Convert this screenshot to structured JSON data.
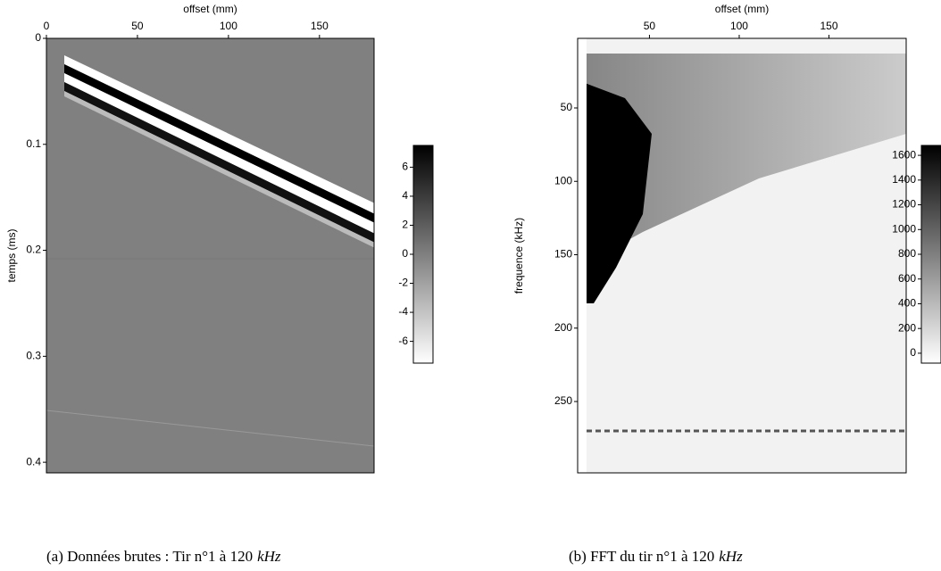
{
  "chart_data": [
    {
      "type": "image",
      "x_label": "offset (mm)",
      "y_label": "temps (ms)",
      "xlim": [
        0,
        180
      ],
      "xticks": [
        0,
        50,
        100,
        150
      ],
      "ylim": [
        0,
        0.41
      ],
      "yticks": [
        0,
        0.1,
        0.2,
        0.3,
        0.4
      ],
      "colorbar": {
        "lim": [
          -7.5,
          7.5
        ],
        "ticks": [
          6,
          4,
          2,
          0,
          -2,
          -4,
          -6
        ]
      },
      "caption": "(a) Données brutes : Tir n°1 à 120",
      "caption_unit": "kHz"
    },
    {
      "type": "image",
      "x_label": "offset (mm)",
      "y_label": "frequence (kHz)",
      "xlim": [
        10,
        193
      ],
      "xticks": [
        50,
        100,
        150
      ],
      "ylim": [
        2.6,
        298.6
      ],
      "yticks": [
        50,
        100,
        150,
        200,
        250
      ],
      "colorbar": {
        "lim": [
          -80,
          1680
        ],
        "ticks": [
          1600,
          1400,
          1200,
          1000,
          800,
          600,
          400,
          200,
          0
        ]
      },
      "caption": "(b) FFT du tir n°1 à 120",
      "caption_unit": "kHz"
    }
  ]
}
